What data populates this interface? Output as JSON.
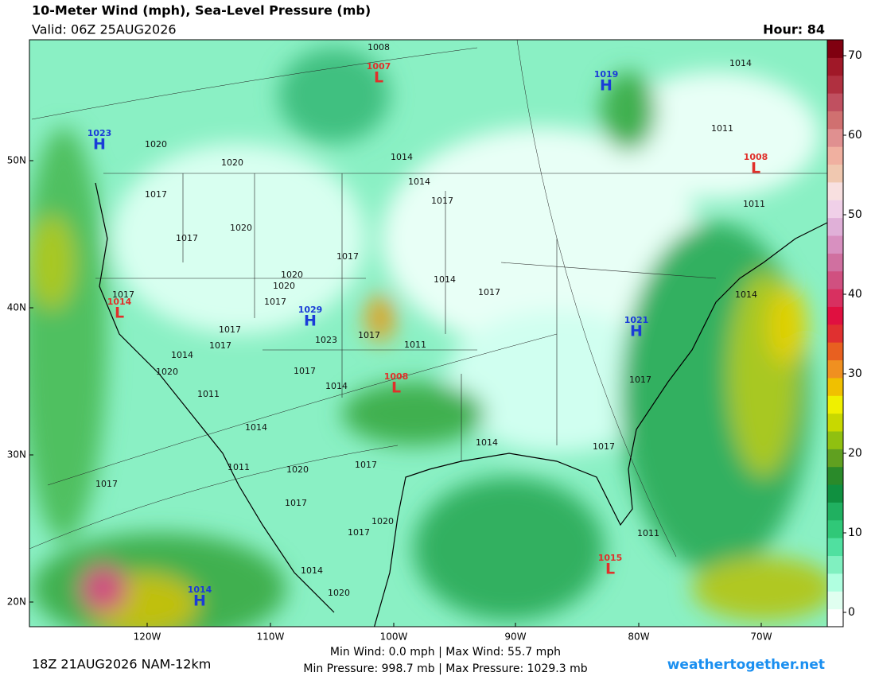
{
  "header": {
    "title": "10-Meter Wind (mph), Sea-Level Pressure (mb)",
    "valid": "Valid: 06Z 25AUG2026",
    "hour": "Hour: 84"
  },
  "map": {
    "lat_labels": [
      "20N",
      "30N",
      "40N",
      "50N"
    ],
    "lon_labels": [
      "120W",
      "110W",
      "100W",
      "90W",
      "80W",
      "70W"
    ],
    "centers": [
      {
        "letter": "H",
        "pressure": "1023"
      },
      {
        "letter": "L",
        "pressure": "1007"
      },
      {
        "letter": "H",
        "pressure": "1019"
      },
      {
        "letter": "L",
        "pressure": "1008"
      },
      {
        "letter": "L",
        "pressure": "1014"
      },
      {
        "letter": "H",
        "pressure": "1029"
      },
      {
        "letter": "H",
        "pressure": "1021"
      },
      {
        "letter": "L",
        "pressure": "1008"
      },
      {
        "letter": "L",
        "pressure": "1015"
      },
      {
        "letter": "H",
        "pressure": "1014"
      }
    ],
    "isobar_labels": [
      "1020",
      "1020",
      "1017",
      "1017",
      "1020",
      "1014",
      "1011",
      "1014",
      "1014",
      "1017",
      "1017",
      "1020",
      "1020",
      "1017",
      "1014",
      "1017",
      "1017",
      "1017",
      "1017",
      "1023",
      "1017",
      "1011",
      "1014",
      "1020",
      "1017",
      "1011",
      "1014",
      "1017",
      "1014",
      "1014",
      "1017",
      "1017",
      "1011",
      "1020",
      "1017",
      "1017",
      "1020",
      "1017",
      "1014",
      "1020",
      "1014",
      "1011",
      "1008",
      "1011"
    ]
  },
  "colorbar": {
    "labels": [
      0,
      10,
      20,
      30,
      40,
      50,
      60,
      70
    ],
    "colors": [
      "#ffffff",
      "#e0fff0",
      "#b0ffe0",
      "#80f0c0",
      "#50e0a0",
      "#30c878",
      "#20b060",
      "#109040",
      "#2a8a2a",
      "#60a020",
      "#90c010",
      "#c8d800",
      "#f0f000",
      "#f0c000",
      "#f09020",
      "#e86020",
      "#e03030",
      "#e01040",
      "#d83060",
      "#d05080",
      "#d070a0",
      "#d890c0",
      "#e0b0d8",
      "#f0d0e8",
      "#f8e0e0",
      "#f0c8b0",
      "#f0b0a0",
      "#e09090",
      "#d07070",
      "#c05060",
      "#b03040",
      "#a01828",
      "#800010"
    ]
  },
  "footer": {
    "model": "18Z 21AUG2026 NAM-12km",
    "wind": "Min Wind:  0.0 mph | Max Wind:  55.7 mph",
    "pressure": "Min Pressure: 998.7 mb | Max Pressure: 1029.3 mb",
    "site": "weathertogether.net"
  }
}
